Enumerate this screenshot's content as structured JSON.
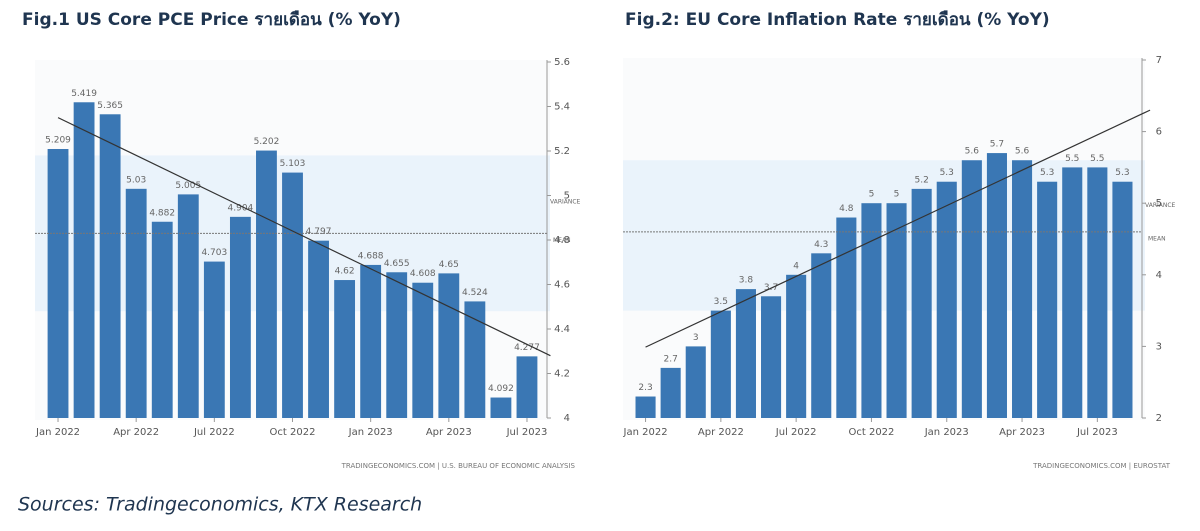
{
  "chart_data": [
    {
      "type": "bar",
      "title": "Fig.1 US Core PCE Price รายเดือน (% YoY)",
      "categories": [
        "Jan 2022",
        null,
        null,
        "Apr 2022",
        null,
        null,
        "Jul 2022",
        null,
        null,
        "Oct 2022",
        null,
        null,
        "Jan 2023",
        null,
        null,
        "Apr 2023",
        null,
        null,
        "Jul 2023"
      ],
      "values": [
        5.209,
        5.419,
        5.365,
        5.03,
        4.882,
        5.005,
        4.703,
        4.904,
        5.202,
        5.103,
        4.797,
        4.62,
        4.688,
        4.655,
        4.608,
        4.65,
        4.524,
        4.092,
        4.277
      ],
      "color": "#3a77b4",
      "ylim": [
        4,
        5.6
      ],
      "yticks": [
        4,
        4.2,
        4.4,
        4.6,
        4.8,
        5,
        5.2,
        5.4,
        5.6
      ],
      "mean": {
        "label": "MEAN",
        "value": 4.83
      },
      "variance": {
        "label": "VARIANCE",
        "values": [
          4.48,
          5.18
        ]
      },
      "trend": {
        "x": [
          0,
          18.9
        ],
        "values": [
          5.35,
          4.28
        ]
      },
      "source": "TRADINGECONOMICS.COM | U.S. BUREAU OF ECONOMIC ANALYSIS"
    },
    {
      "type": "bar",
      "title": "Fig.2:  EU Core Inflation Rate รายเดือน (% YoY)",
      "categories": [
        "Jan 2022",
        null,
        null,
        "Apr 2022",
        null,
        null,
        "Jul 2022",
        null,
        null,
        "Oct 2022",
        null,
        null,
        "Jan 2023",
        null,
        null,
        "Apr 2023",
        null,
        null,
        "Jul 2023",
        null
      ],
      "values": [
        2.3,
        2.7,
        3,
        3.5,
        3.8,
        3.7,
        4,
        4.3,
        4.8,
        5,
        5,
        5.2,
        5.3,
        5.6,
        5.7,
        5.6,
        5.3,
        5.5,
        5.5,
        5.3
      ],
      "color": "#3a77b4",
      "ylim": [
        2,
        7
      ],
      "yticks": [
        2,
        3,
        4,
        5,
        6,
        7
      ],
      "mean": {
        "label": "MEAN",
        "value": 4.6
      },
      "variance": {
        "label": "VARIANCE",
        "values": [
          3.5,
          5.6
        ]
      },
      "trend": {
        "x": [
          0,
          20.1
        ],
        "values": [
          2.99,
          6.3
        ]
      },
      "source": "TRADINGECONOMICS.COM | EUROSTAT"
    }
  ],
  "footer": {
    "source": "Sources: Tradingeconomics, KTX Research"
  }
}
